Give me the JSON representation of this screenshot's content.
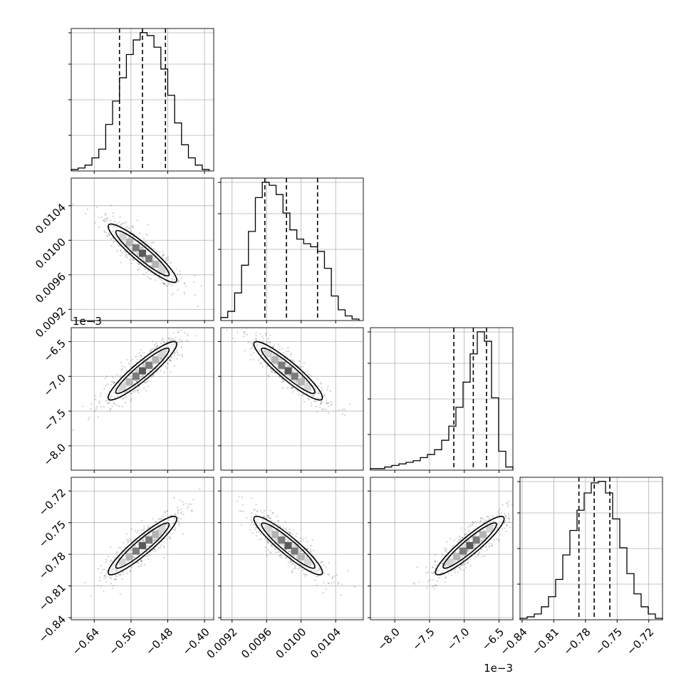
{
  "chart_data": {
    "type": "corner",
    "n_params": 4,
    "params": [
      {
        "id": "p0",
        "ticks": [
          -0.64,
          -0.56,
          -0.48,
          -0.4
        ],
        "tick_labels": [
          "−0.64",
          "−0.56",
          "−0.48",
          "−0.40"
        ],
        "range": [
          -0.69,
          -0.38
        ],
        "offset_text": ""
      },
      {
        "id": "p1",
        "ticks": [
          0.0092,
          0.0096,
          0.01,
          0.0104
        ],
        "tick_labels": [
          "0.0092",
          "0.0096",
          "0.0100",
          "0.0104"
        ],
        "range": [
          0.00907,
          0.01072
        ],
        "offset_text": ""
      },
      {
        "id": "p2",
        "ticks": [
          -8.0,
          -7.5,
          -7.0,
          -6.5
        ],
        "tick_labels": [
          "−8.0",
          "−7.5",
          "−7.0",
          "−6.5"
        ],
        "range": [
          -8.35,
          -6.3
        ],
        "offset_text": "1e−3"
      },
      {
        "id": "p3",
        "ticks": [
          -0.84,
          -0.81,
          -0.78,
          -0.75,
          -0.72
        ],
        "tick_labels": [
          "−0.84",
          "−0.81",
          "−0.78",
          "−0.75",
          "−0.72"
        ],
        "range": [
          -0.842,
          -0.707
        ],
        "offset_text": ""
      }
    ],
    "quantiles": [
      [
        -0.585,
        -0.535,
        -0.485
      ],
      [
        0.00958,
        0.00983,
        0.01019
      ],
      [
        -7.15,
        -6.87,
        -6.68
      ],
      [
        -0.7862,
        -0.7717,
        -0.7569
      ]
    ],
    "histograms": [
      {
        "param": "p0",
        "bin_edges": [
          -0.69,
          -0.675,
          -0.66,
          -0.645,
          -0.63,
          -0.615,
          -0.6,
          -0.585,
          -0.57,
          -0.555,
          -0.54,
          -0.525,
          -0.51,
          -0.495,
          -0.48,
          -0.465,
          -0.45,
          -0.435,
          -0.42,
          -0.405,
          -0.39
        ],
        "counts": [
          1,
          2,
          4,
          9,
          15,
          32,
          48,
          64,
          80,
          90,
          95,
          93,
          85,
          70,
          52,
          33,
          18,
          9,
          4,
          1
        ]
      },
      {
        "param": "p1",
        "bin_edges": [
          0.00907,
          0.00915,
          0.00923,
          0.00931,
          0.00939,
          0.00947,
          0.00955,
          0.00963,
          0.00971,
          0.00979,
          0.00987,
          0.00995,
          0.01003,
          0.01011,
          0.01019,
          0.01027,
          0.01035,
          0.01043,
          0.01051,
          0.01059,
          0.01067
        ],
        "counts": [
          2,
          6,
          18,
          36,
          58,
          80,
          90,
          88,
          82,
          70,
          59,
          53,
          50,
          48,
          45,
          34,
          16,
          7,
          3,
          1
        ]
      },
      {
        "param": "p2",
        "bin_edges": [
          -8.35,
          -8.2475,
          -8.145,
          -8.0425,
          -7.94,
          -7.8375,
          -7.735,
          -7.6325,
          -7.53,
          -7.4275,
          -7.325,
          -7.2225,
          -7.12,
          -7.0175,
          -6.915,
          -6.8125,
          -6.71,
          -6.6075,
          -6.505,
          -6.4025,
          -6.3
        ],
        "counts": [
          1,
          1,
          2,
          3,
          4,
          5,
          6,
          8,
          10,
          13,
          19,
          28,
          40,
          56,
          74,
          88,
          82,
          46,
          12,
          2
        ]
      },
      {
        "param": "p3",
        "bin_edges": [
          -0.842,
          -0.83525,
          -0.8285,
          -0.82175,
          -0.815,
          -0.80825,
          -0.8015,
          -0.79475,
          -0.788,
          -0.78125,
          -0.7745,
          -0.76775,
          -0.761,
          -0.75425,
          -0.7475,
          -0.74075,
          -0.734,
          -0.72725,
          -0.7205,
          -0.71375,
          -0.707
        ],
        "counts": [
          1,
          2,
          4,
          9,
          16,
          28,
          45,
          62,
          76,
          88,
          95,
          96,
          88,
          70,
          50,
          32,
          18,
          9,
          4,
          1
        ]
      }
    ],
    "pairs": [
      {
        "x": "p0",
        "y": "p1",
        "center": [
          -0.535,
          0.00985
        ],
        "corr": -0.96
      },
      {
        "x": "p0",
        "y": "p2",
        "center": [
          -0.535,
          -6.92
        ],
        "corr": 0.85
      },
      {
        "x": "p1",
        "y": "p2",
        "center": [
          0.00985,
          -6.92
        ],
        "corr": -0.82
      },
      {
        "x": "p0",
        "y": "p3",
        "center": [
          -0.535,
          -0.7717
        ],
        "corr": 0.98
      },
      {
        "x": "p1",
        "y": "p3",
        "center": [
          0.00985,
          -0.7717
        ],
        "corr": -0.95
      },
      {
        "x": "p2",
        "y": "p3",
        "center": [
          -6.92,
          -0.7717
        ],
        "corr": 0.86
      }
    ],
    "grid": true,
    "colors": {
      "line": "#000000",
      "grid": "#b0b0b0",
      "points": "#000000"
    }
  }
}
